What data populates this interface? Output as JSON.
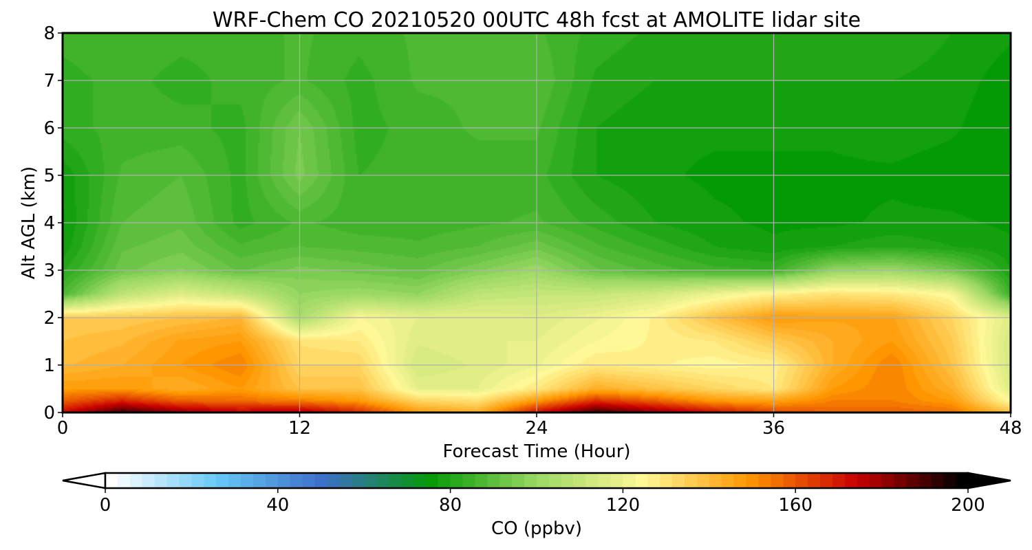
{
  "chart_data": {
    "type": "heatmap",
    "title": "WRF-Chem CO  20210520 00UTC 48h fcst at AMOLITE lidar site",
    "xlabel": "Forecast Time (Hour)",
    "ylabel": "Alt AGL (km)",
    "xlim": [
      0,
      48
    ],
    "ylim": [
      0,
      8
    ],
    "xticks": [
      "0",
      "12",
      "24",
      "36",
      "48"
    ],
    "yticks": [
      "0",
      "1",
      "2",
      "3",
      "4",
      "5",
      "6",
      "7",
      "8"
    ],
    "grid": true,
    "x": [
      0,
      3,
      6,
      9,
      12,
      15,
      18,
      21,
      24,
      27,
      30,
      33,
      36,
      39,
      42,
      45,
      48
    ],
    "y": [
      0,
      0.25,
      0.5,
      1,
      1.5,
      2,
      2.5,
      3,
      3.5,
      4,
      5,
      6,
      7,
      8
    ],
    "z": [
      [
        175,
        195,
        185,
        178,
        182,
        170,
        150,
        145,
        175,
        195,
        185,
        175,
        165,
        160,
        160,
        158,
        140
      ],
      [
        160,
        170,
        160,
        158,
        155,
        150,
        135,
        132,
        150,
        168,
        160,
        150,
        148,
        155,
        155,
        150,
        125
      ],
      [
        150,
        150,
        145,
        150,
        140,
        140,
        120,
        120,
        130,
        145,
        140,
        135,
        130,
        150,
        155,
        145,
        118
      ],
      [
        142,
        145,
        150,
        155,
        135,
        135,
        115,
        118,
        122,
        130,
        128,
        126,
        128,
        145,
        155,
        140,
        115
      ],
      [
        140,
        142,
        148,
        150,
        132,
        130,
        118,
        120,
        120,
        125,
        128,
        130,
        138,
        145,
        150,
        138,
        115
      ],
      [
        138,
        138,
        140,
        143,
        105,
        125,
        120,
        120,
        118,
        122,
        128,
        140,
        150,
        148,
        148,
        135,
        118
      ],
      [
        88,
        110,
        118,
        112,
        100,
        102,
        100,
        110,
        112,
        112,
        115,
        122,
        128,
        132,
        130,
        125,
        85
      ],
      [
        82,
        94,
        98,
        92,
        96,
        94,
        92,
        97,
        102,
        93,
        89,
        86,
        85,
        100,
        102,
        95,
        80
      ],
      [
        78,
        92,
        94,
        88,
        90,
        89,
        88,
        90,
        94,
        88,
        84,
        80,
        78,
        80,
        82,
        80,
        78
      ],
      [
        77,
        90,
        92,
        84,
        88,
        86,
        86,
        87,
        88,
        84,
        80,
        78,
        77,
        77,
        78,
        78,
        77
      ],
      [
        78,
        88,
        90,
        84,
        96,
        85,
        86,
        86,
        86,
        80,
        78,
        77,
        77,
        77,
        77,
        76,
        75
      ],
      [
        84,
        86,
        86,
        84,
        95,
        84,
        86,
        88,
        88,
        80,
        78,
        78,
        78,
        78,
        79,
        78,
        75
      ],
      [
        84,
        86,
        84,
        86,
        88,
        84,
        88,
        88,
        90,
        82,
        80,
        80,
        80,
        80,
        80,
        79,
        76
      ],
      [
        86,
        87,
        86,
        86,
        88,
        86,
        88,
        88,
        88,
        84,
        82,
        82,
        82,
        82,
        82,
        80,
        78
      ]
    ],
    "colorbar": {
      "label": "CO  (ppbv)",
      "min": 0,
      "max": 200,
      "ticks": [
        "0",
        "40",
        "80",
        "120",
        "160",
        "200"
      ],
      "extend": "both",
      "colors": [
        "#ffffff",
        "#66c8f5",
        "#3c6ec8",
        "#049a04",
        "#9ad864",
        "#fff896",
        "#ff9600",
        "#ca0000",
        "#000000"
      ]
    }
  }
}
